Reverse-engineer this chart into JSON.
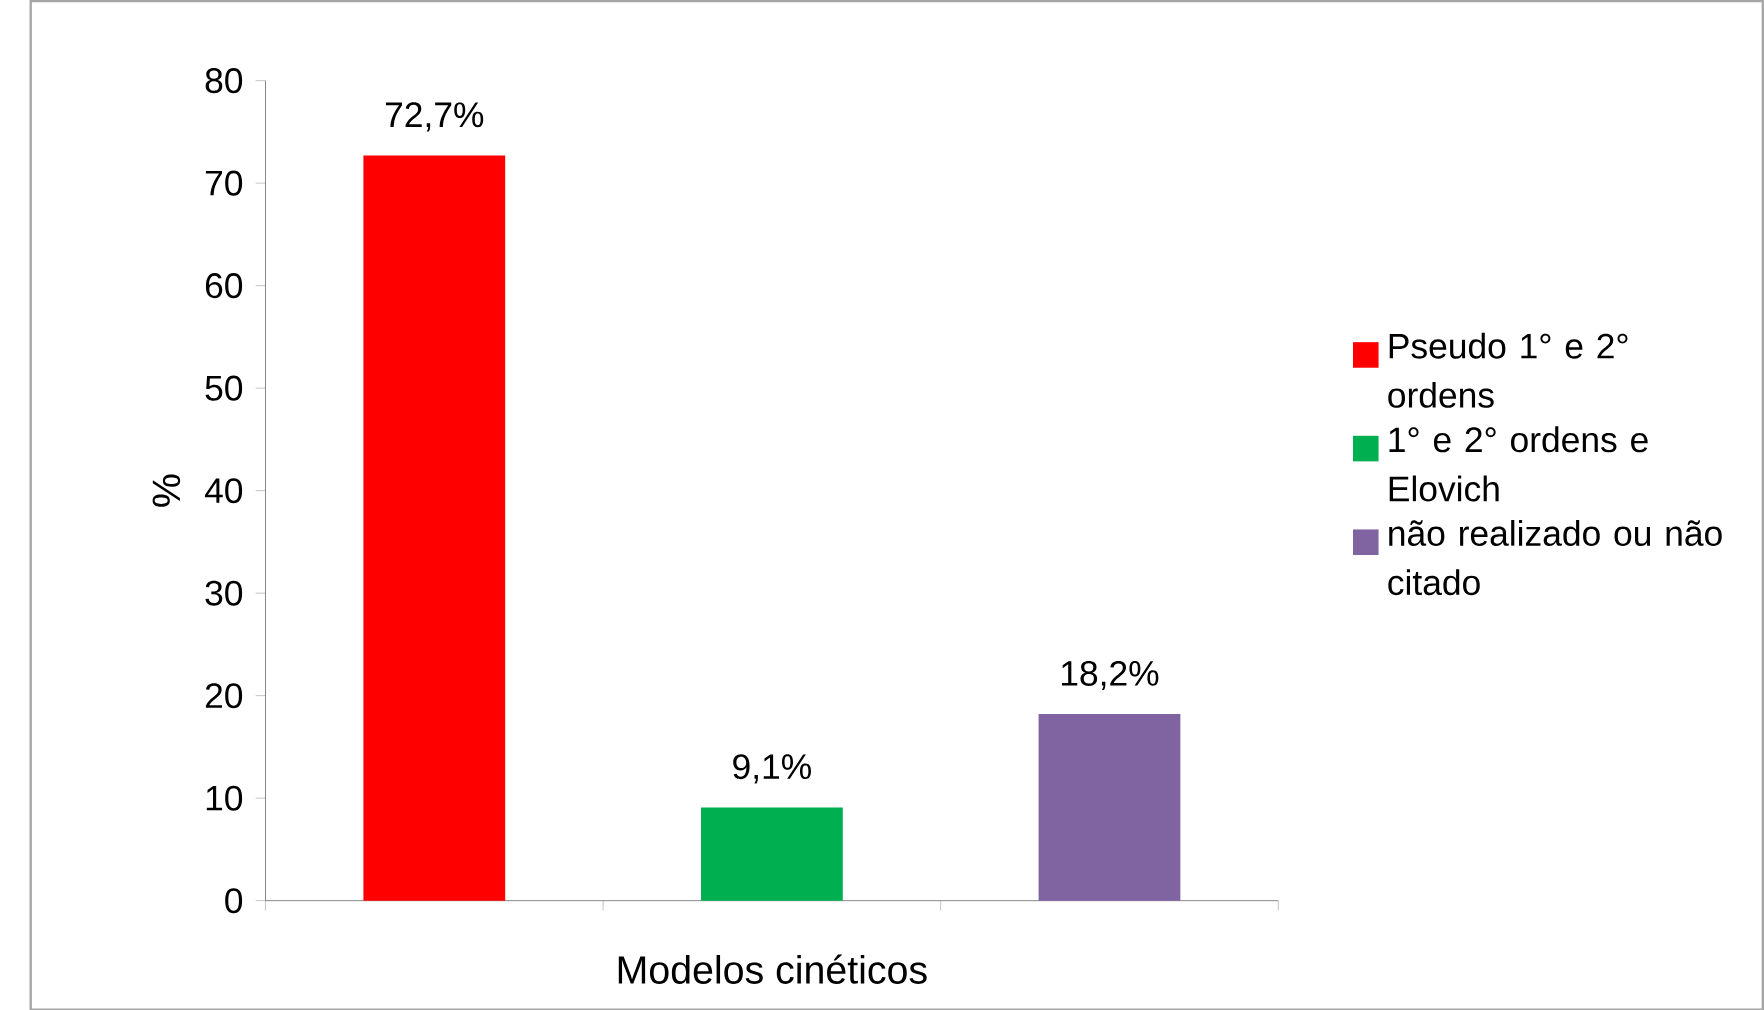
{
  "chart_data": {
    "type": "bar",
    "xlabel": "Modelos cinéticos",
    "ylabel": "%",
    "categories": [
      null,
      null,
      null
    ],
    "series": [
      {
        "name": "Pseudo 1° e 2° ordens",
        "color": "#ff0000",
        "values": [
          72.7,
          null,
          null
        ],
        "value_labels": [
          "72,7%",
          null,
          null
        ]
      },
      {
        "name": "1° e 2° ordens e Elovich",
        "color": "#00b050",
        "values": [
          null,
          9.1,
          null
        ],
        "value_labels": [
          null,
          "9,1%",
          null
        ]
      },
      {
        "name": "não realizado ou não citado",
        "color": "#8064a2",
        "values": [
          null,
          null,
          18.2
        ],
        "value_labels": [
          null,
          null,
          "18,2%"
        ]
      }
    ],
    "ylim": [
      0,
      80
    ],
    "yticks": [
      0,
      10,
      20,
      30,
      40,
      50,
      60,
      70,
      80
    ],
    "legend": "right"
  }
}
